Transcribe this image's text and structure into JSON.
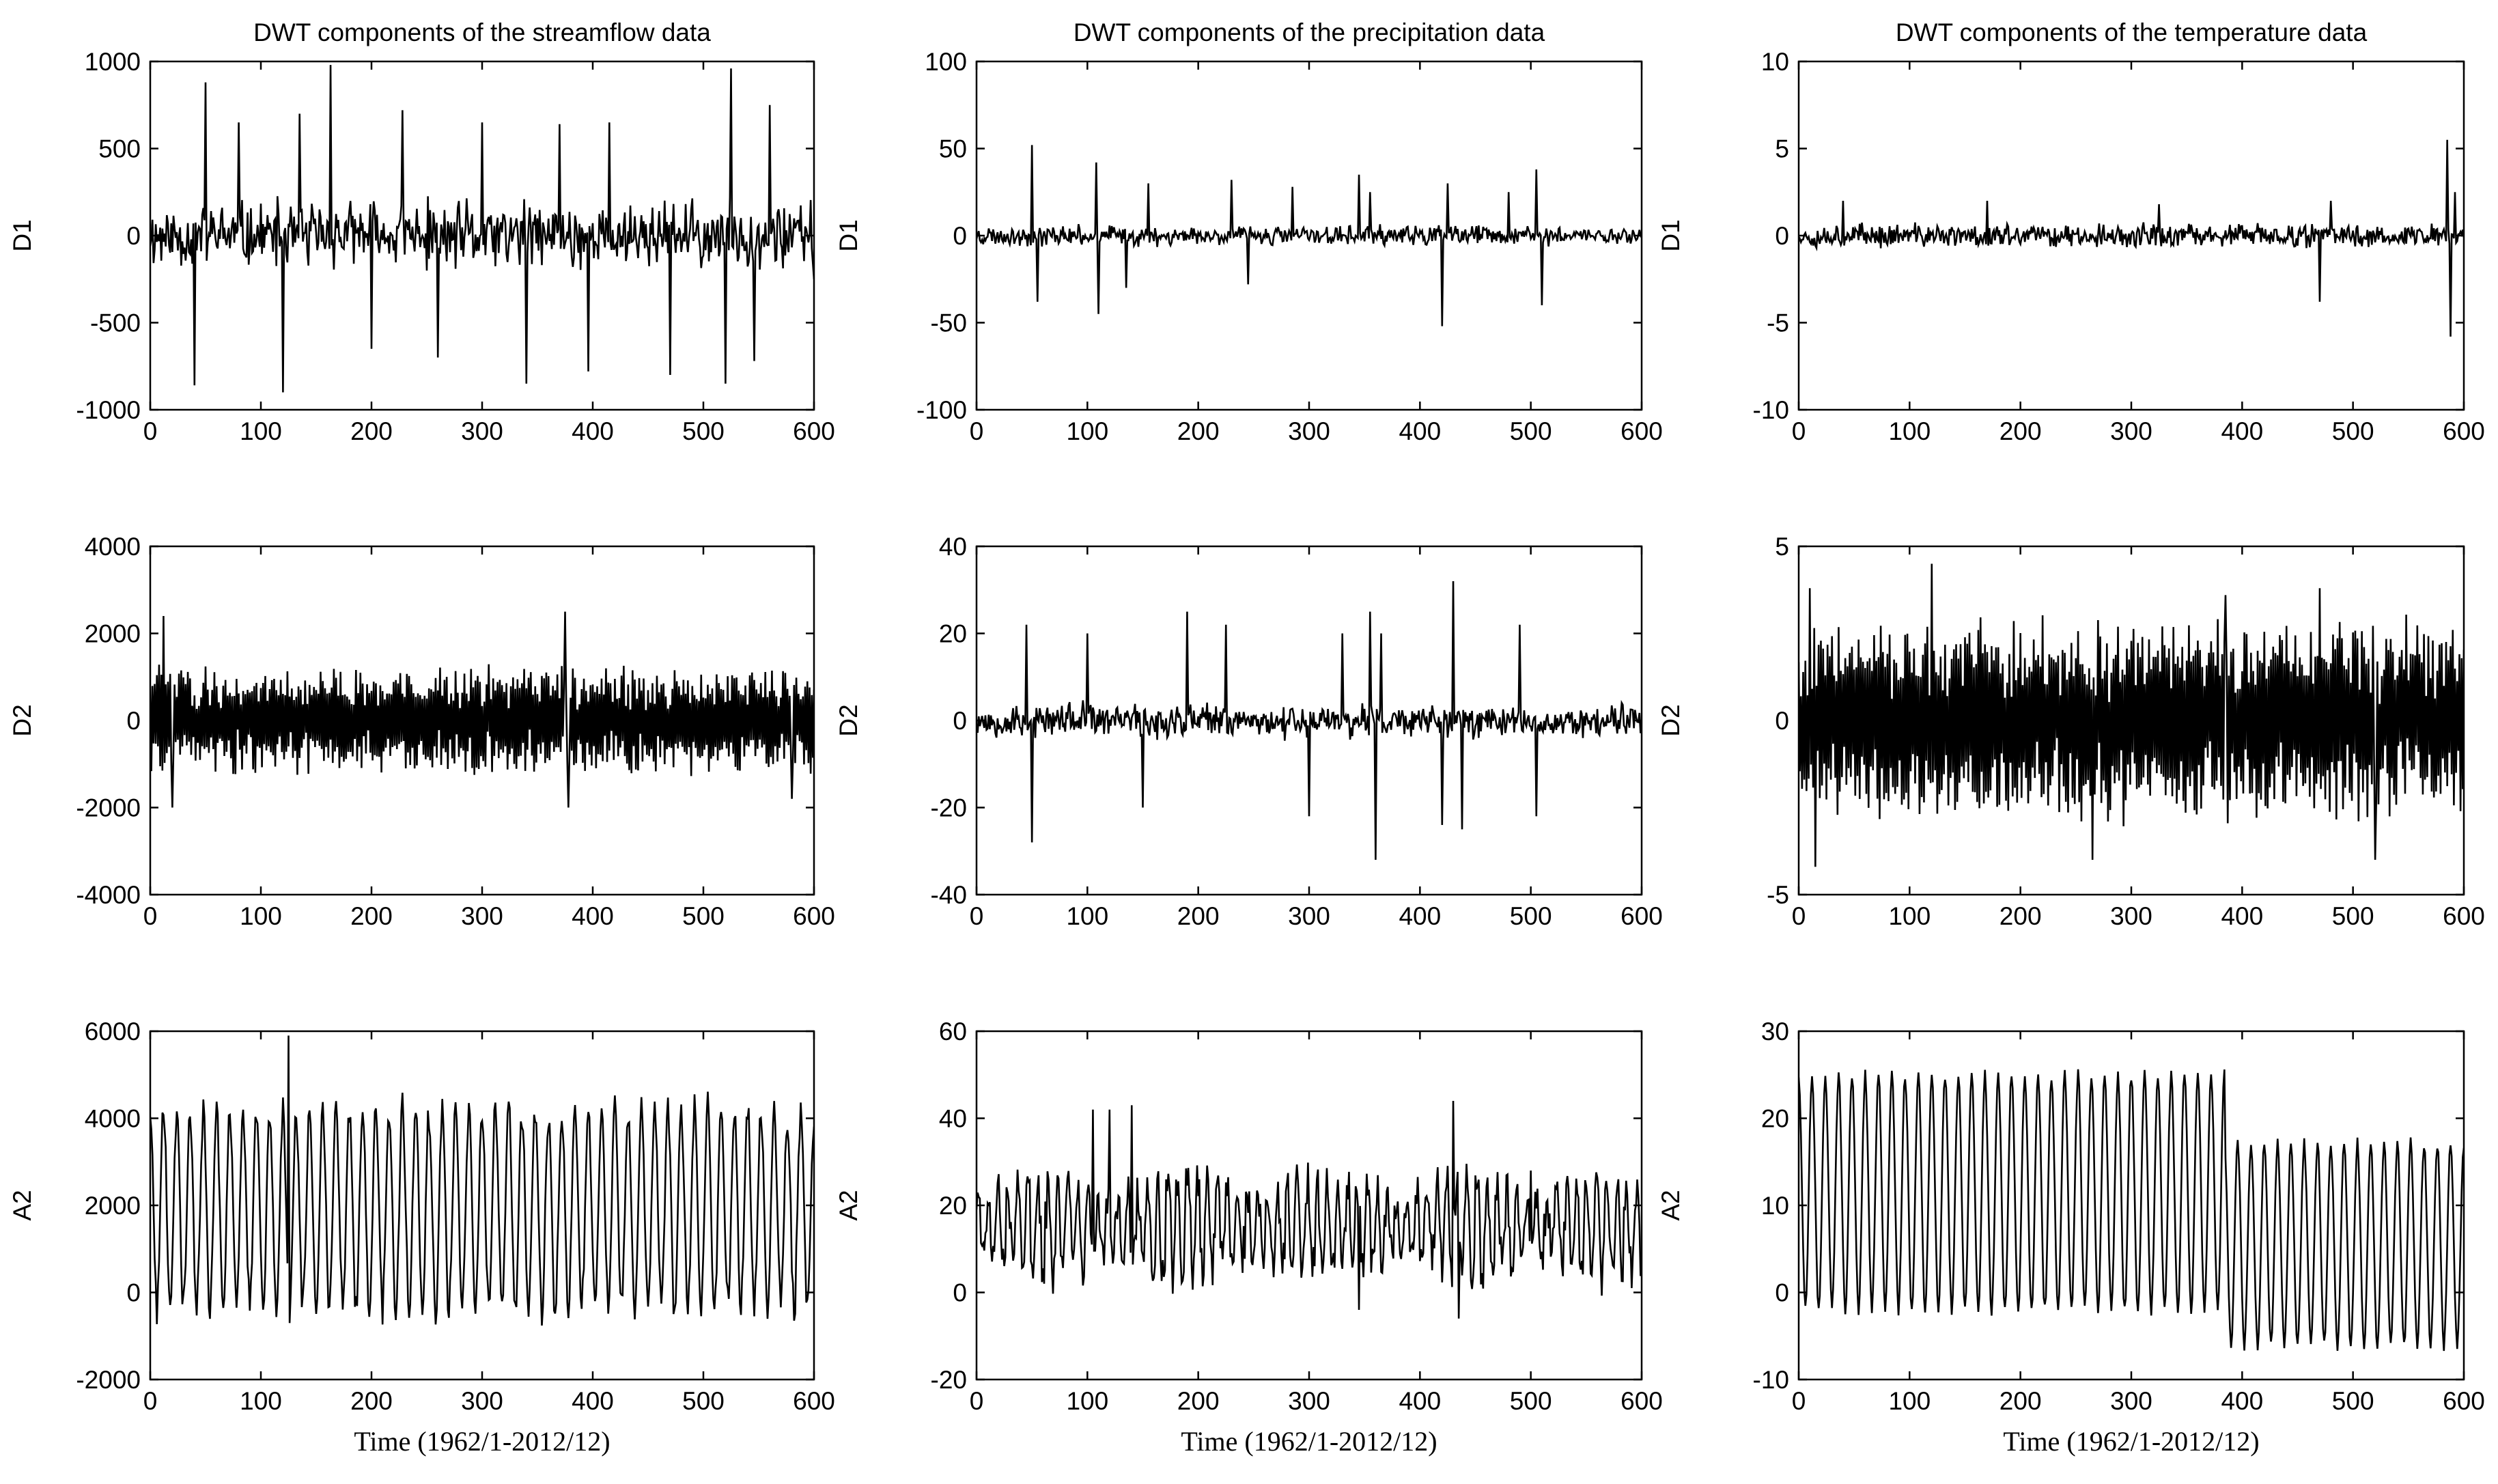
{
  "chart_data": [
    {
      "type": "line",
      "title": "DWT components of the streamflow data",
      "ylabel": "D1",
      "xlabel": "",
      "xlim": [
        0,
        600
      ],
      "ylim": [
        -1000,
        1000
      ],
      "xticks": [
        "0",
        "100",
        "200",
        "300",
        "400",
        "500",
        "600"
      ],
      "yticks": [
        "-1000",
        "-500",
        "0",
        "500",
        "1000"
      ],
      "series": [
        {
          "gen": {
            "mode": "noise",
            "amp": 170,
            "seed": 11,
            "spikes": [
              [
                40,
                -860
              ],
              [
                50,
                880
              ],
              [
                80,
                650
              ],
              [
                120,
                -900
              ],
              [
                135,
                700
              ],
              [
                163,
                980
              ],
              [
                200,
                -650
              ],
              [
                228,
                720
              ],
              [
                260,
                -700
              ],
              [
                300,
                650
              ],
              [
                340,
                -850
              ],
              [
                370,
                640
              ],
              [
                396,
                -780
              ],
              [
                415,
                650
              ],
              [
                470,
                -800
              ],
              [
                520,
                -850
              ],
              [
                525,
                960
              ],
              [
                546,
                -720
              ],
              [
                560,
                750
              ],
              [
                600,
                -250
              ]
            ]
          }
        }
      ]
    },
    {
      "type": "line",
      "title": "DWT components of the  precipitation data",
      "ylabel": "D1",
      "xlabel": "",
      "xlim": [
        0,
        600
      ],
      "ylim": [
        -100,
        100
      ],
      "xticks": [
        "0",
        "100",
        "200",
        "300",
        "400",
        "500",
        "600"
      ],
      "yticks": [
        "-100",
        "-50",
        "0",
        "50",
        "100"
      ],
      "series": [
        {
          "gen": {
            "mode": "noise",
            "amp": 5,
            "seed": 23,
            "spikes": [
              [
                50,
                52
              ],
              [
                55,
                -38
              ],
              [
                108,
                42
              ],
              [
                110,
                -45
              ],
              [
                135,
                -30
              ],
              [
                155,
                30
              ],
              [
                230,
                32
              ],
              [
                245,
                -28
              ],
              [
                285,
                28
              ],
              [
                345,
                35
              ],
              [
                355,
                25
              ],
              [
                420,
                -52
              ],
              [
                425,
                30
              ],
              [
                480,
                25
              ],
              [
                505,
                38
              ],
              [
                510,
                -40
              ]
            ]
          }
        }
      ]
    },
    {
      "type": "line",
      "title": "DWT components of the temperature data",
      "ylabel": "D1",
      "xlabel": "",
      "xlim": [
        0,
        600
      ],
      "ylim": [
        -10,
        10
      ],
      "xticks": [
        "0",
        "100",
        "200",
        "300",
        "400",
        "500",
        "600"
      ],
      "yticks": [
        "-10",
        "-5",
        "0",
        "5",
        "10"
      ],
      "series": [
        {
          "gen": {
            "mode": "noise",
            "amp": 0.6,
            "seed": 37,
            "spikes": [
              [
                40,
                2
              ],
              [
                170,
                2
              ],
              [
                325,
                1.8
              ],
              [
                470,
                -3.8
              ],
              [
                480,
                2
              ],
              [
                585,
                5.5
              ],
              [
                588,
                -5.8
              ],
              [
                592,
                2.5
              ]
            ]
          }
        }
      ]
    },
    {
      "type": "line",
      "title": "",
      "ylabel": "D2",
      "xlabel": "",
      "xlim": [
        0,
        600
      ],
      "ylim": [
        -4000,
        4000
      ],
      "xticks": [
        "0",
        "100",
        "200",
        "300",
        "400",
        "500",
        "600"
      ],
      "yticks": [
        "-4000",
        "-2000",
        "0",
        "2000",
        "4000"
      ],
      "series": [
        {
          "gen": {
            "mode": "osc",
            "amp": 1100,
            "seed": 41,
            "spikes": [
              [
                12,
                2400
              ],
              [
                20,
                -2000
              ],
              [
                375,
                2500
              ],
              [
                378,
                -2000
              ],
              [
                580,
                -1800
              ]
            ]
          }
        }
      ]
    },
    {
      "type": "line",
      "title": "",
      "ylabel": "D2",
      "xlabel": "",
      "xlim": [
        0,
        600
      ],
      "ylim": [
        -40,
        40
      ],
      "xticks": [
        "0",
        "100",
        "200",
        "300",
        "400",
        "500",
        "600"
      ],
      "yticks": [
        "-40",
        "-20",
        "0",
        "20",
        "40"
      ],
      "series": [
        {
          "gen": {
            "mode": "noise",
            "amp": 3.5,
            "seed": 53,
            "spikes": [
              [
                45,
                22
              ],
              [
                50,
                -28
              ],
              [
                100,
                20
              ],
              [
                150,
                -20
              ],
              [
                190,
                25
              ],
              [
                225,
                22
              ],
              [
                300,
                -22
              ],
              [
                330,
                20
              ],
              [
                355,
                25
              ],
              [
                360,
                -32
              ],
              [
                365,
                20
              ],
              [
                420,
                -24
              ],
              [
                430,
                32
              ],
              [
                438,
                -25
              ],
              [
                490,
                22
              ],
              [
                505,
                -22
              ]
            ]
          }
        }
      ]
    },
    {
      "type": "line",
      "title": "",
      "ylabel": "D2",
      "xlabel": "",
      "xlim": [
        0,
        600
      ],
      "ylim": [
        -5,
        5
      ],
      "xticks": [
        "0",
        "100",
        "200",
        "300",
        "400",
        "500",
        "600"
      ],
      "yticks": [
        "-5",
        "0",
        "5"
      ],
      "series": [
        {
          "gen": {
            "mode": "osc",
            "amp": 2.6,
            "seed": 61,
            "spikes": [
              [
                10,
                3.8
              ],
              [
                15,
                -4.2
              ],
              [
                120,
                4.5
              ],
              [
                265,
                -4
              ],
              [
                385,
                3.6
              ],
              [
                470,
                3.8
              ],
              [
                520,
                -4
              ]
            ]
          }
        }
      ]
    },
    {
      "type": "line",
      "title": "",
      "ylabel": "A2",
      "xlabel": "Time (1962/1-2012/12)",
      "xlim": [
        0,
        600
      ],
      "ylim": [
        -2000,
        6000
      ],
      "xticks": [
        "0",
        "100",
        "200",
        "300",
        "400",
        "500",
        "600"
      ],
      "yticks": [
        "-2000",
        "0",
        "2000",
        "4000",
        "6000"
      ],
      "series": [
        {
          "gen": {
            "mode": "seasonal",
            "center": 1900,
            "amp": 2200,
            "seed": 71,
            "spikes": [
              [
                125,
                5900
              ]
            ]
          }
        }
      ]
    },
    {
      "type": "line",
      "title": "",
      "ylabel": "A2",
      "xlabel": "Time (1962/1-2012/12)",
      "xlim": [
        0,
        600
      ],
      "ylim": [
        -20,
        60
      ],
      "xticks": [
        "0",
        "100",
        "200",
        "300",
        "400",
        "500",
        "600"
      ],
      "yticks": [
        "-20",
        "0",
        "20",
        "40",
        "60"
      ],
      "series": [
        {
          "gen": {
            "mode": "precip",
            "center": 15,
            "amp": 10,
            "seed": 83,
            "spikes": [
              [
                105,
                42
              ],
              [
                120,
                42
              ],
              [
                140,
                43
              ],
              [
                345,
                -4
              ],
              [
                430,
                44
              ],
              [
                435,
                -6
              ],
              [
                500,
                28
              ]
            ]
          }
        }
      ]
    },
    {
      "type": "line",
      "title": "",
      "ylabel": "A2",
      "xlabel": "Time (1962/1-2012/12)",
      "xlim": [
        0,
        600
      ],
      "ylim": [
        -10,
        30
      ],
      "xticks": [
        "0",
        "100",
        "200",
        "300",
        "400",
        "500",
        "600"
      ],
      "yticks": [
        "-10",
        "0",
        "10",
        "20",
        "30"
      ],
      "series": [
        {
          "gen": {
            "mode": "temp",
            "seed": 97,
            "spikes": []
          }
        }
      ]
    }
  ]
}
